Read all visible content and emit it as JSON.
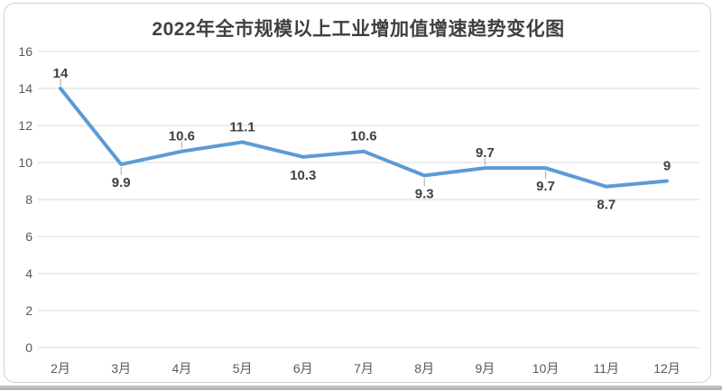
{
  "title": "2022年全市规模以上工业增加值增速趋势变化图",
  "colors": {
    "line": "#5B9BD5",
    "grid": "#D9D9D9",
    "axis_text": "#595959",
    "label_text": "#404040",
    "title_text": "#404040",
    "card_border": "#D2D2D2",
    "leader_tick": "#A6A6A6",
    "bottom_shadow": "#B5B5B5"
  },
  "chart_data": {
    "type": "line",
    "title": "2022年全市规模以上工业增加值增速趋势变化图",
    "categories": [
      "2月",
      "3月",
      "4月",
      "5月",
      "6月",
      "7月",
      "8月",
      "9月",
      "10月",
      "11月",
      "12月"
    ],
    "values": [
      14,
      9.9,
      10.6,
      11.1,
      10.3,
      10.6,
      9.3,
      9.7,
      9.7,
      8.7,
      9
    ],
    "data_labels": [
      "14",
      "9.9",
      "10.6",
      "11.1",
      "10.3",
      "10.6",
      "9.3",
      "9.7",
      "9.7",
      "8.7",
      "9"
    ],
    "xlabel": "",
    "ylabel": "",
    "ylim": [
      0,
      16
    ],
    "yticks": [
      0,
      2,
      4,
      6,
      8,
      10,
      12,
      14,
      16
    ],
    "grid": true,
    "legend": "none",
    "label_positions": [
      "above",
      "below",
      "above",
      "above",
      "below",
      "above",
      "below",
      "above",
      "below",
      "below",
      "above"
    ],
    "leader_ticks": [
      true,
      true,
      true,
      false,
      false,
      false,
      true,
      true,
      true,
      false,
      false
    ]
  }
}
